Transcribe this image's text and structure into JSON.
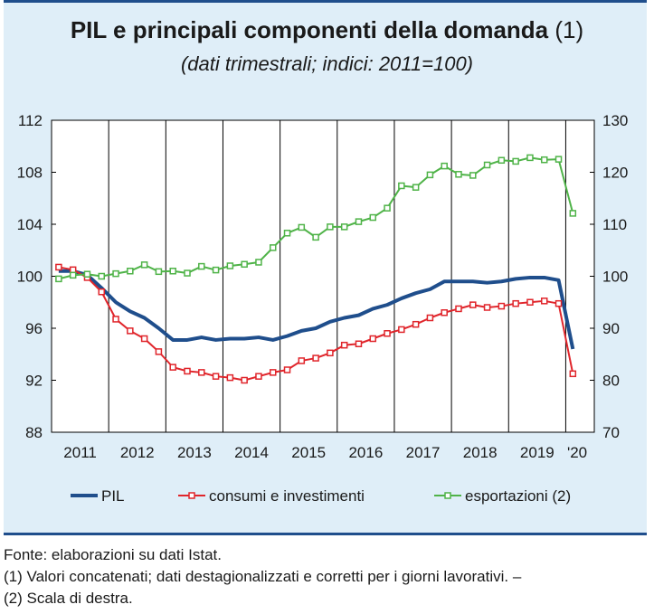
{
  "title": "PIL e principali componenti della domanda",
  "title_note": "(1)",
  "subtitle": "(dati trimestrali; indici: 2011=100)",
  "source": "Fonte: elaborazioni su dati Istat.",
  "notes": [
    "(1) Valori concatenati; dati destagionalizzati e corretti per i giorni lavorativi. –",
    "(2) Scala di destra."
  ],
  "colors": {
    "panel_bg": "#dfeef8",
    "frame": "#1f4e8c",
    "pil": "#1f4e8c",
    "consumi": "#e0252b",
    "export": "#4fb348"
  },
  "chart_data": {
    "type": "line",
    "x_tick_labels": [
      "2011",
      "2012",
      "2013",
      "2014",
      "2015",
      "2016",
      "2017",
      "2018",
      "2019",
      "'20"
    ],
    "left_ticks": [
      "112",
      "108",
      "104",
      "100",
      "96",
      "92",
      "88"
    ],
    "right_ticks": [
      "130",
      "120",
      "110",
      "100",
      "90",
      "80",
      "70"
    ],
    "ylim_left": [
      88,
      112
    ],
    "ylim_right": [
      70,
      130
    ],
    "grid": "vertical lines at year boundaries",
    "legend_position": "bottom",
    "x_quarters": [
      "2011Q1",
      "2011Q2",
      "2011Q3",
      "2011Q4",
      "2012Q1",
      "2012Q2",
      "2012Q3",
      "2012Q4",
      "2013Q1",
      "2013Q2",
      "2013Q3",
      "2013Q4",
      "2014Q1",
      "2014Q2",
      "2014Q3",
      "2014Q4",
      "2015Q1",
      "2015Q2",
      "2015Q3",
      "2015Q4",
      "2016Q1",
      "2016Q2",
      "2016Q3",
      "2016Q4",
      "2017Q1",
      "2017Q2",
      "2017Q3",
      "2017Q4",
      "2018Q1",
      "2018Q2",
      "2018Q3",
      "2018Q4",
      "2019Q1",
      "2019Q2",
      "2019Q3",
      "2019Q4",
      "2020Q1"
    ],
    "series": [
      {
        "name": "PIL",
        "axis": "left",
        "style": "line",
        "color": "#1f4e8c",
        "values": [
          100.4,
          100.4,
          100.1,
          99.1,
          98.0,
          97.3,
          96.8,
          96.0,
          95.1,
          95.1,
          95.3,
          95.1,
          95.2,
          95.2,
          95.3,
          95.1,
          95.4,
          95.8,
          96.0,
          96.5,
          96.8,
          97.0,
          97.5,
          97.8,
          98.3,
          98.7,
          99.0,
          99.6,
          99.6,
          99.6,
          99.5,
          99.6,
          99.8,
          99.9,
          99.9,
          99.7,
          94.4
        ]
      },
      {
        "name": "consumi e investimenti",
        "axis": "left",
        "style": "line-square-markers",
        "color": "#e0252b",
        "values": [
          100.7,
          100.5,
          99.9,
          98.8,
          96.7,
          95.8,
          95.2,
          94.2,
          93.0,
          92.7,
          92.6,
          92.3,
          92.2,
          92.0,
          92.3,
          92.6,
          92.8,
          93.5,
          93.7,
          94.1,
          94.7,
          94.8,
          95.2,
          95.6,
          95.9,
          96.3,
          96.8,
          97.2,
          97.5,
          97.8,
          97.6,
          97.7,
          97.9,
          98.0,
          98.1,
          97.9,
          92.5
        ]
      },
      {
        "name": "esportazioni (2)",
        "axis": "right",
        "style": "line-square-markers",
        "color": "#4fb348",
        "values": [
          99.5,
          100.2,
          100.4,
          100.0,
          100.5,
          101.0,
          102.2,
          100.9,
          101.0,
          100.6,
          101.9,
          101.2,
          102.0,
          102.3,
          102.7,
          105.5,
          108.3,
          109.4,
          107.5,
          109.5,
          109.5,
          110.5,
          111.3,
          113.1,
          117.4,
          117.1,
          119.5,
          121.2,
          119.6,
          119.4,
          121.4,
          122.3,
          122.1,
          122.8,
          122.4,
          122.5,
          112.1
        ]
      }
    ]
  }
}
